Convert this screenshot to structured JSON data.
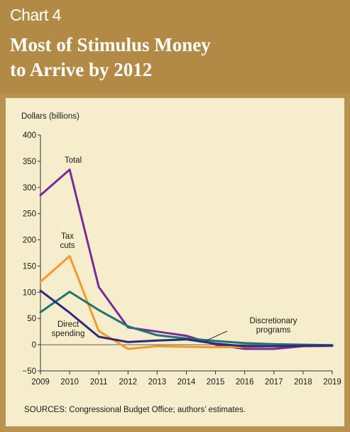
{
  "header": {
    "chart_label": "Chart 4",
    "title_line1": "Most of Stimulus Money",
    "title_line2": "to Arrive by 2012"
  },
  "source": "SOURCES: Congressional Budget Office; authors’ estimates.",
  "colors": {
    "header_bg": "#b38a45",
    "panel_bg": "#f6edcc",
    "total": "#7b2a9a",
    "tax_cuts": "#f39a2a",
    "direct_spending": "#2e2a7a",
    "discretionary": "#1e7470"
  },
  "chart_data": {
    "type": "line",
    "ylabel": "Dollars (billions)",
    "xlabel": "",
    "x": [
      "2009",
      "2010",
      "2011",
      "2012",
      "2013",
      "2014",
      "2015",
      "2016",
      "2017",
      "2018",
      "2019"
    ],
    "ylim": [
      -50,
      400
    ],
    "yticks": [
      -50,
      0,
      50,
      100,
      150,
      200,
      250,
      300,
      350,
      400
    ],
    "ytick_labels": [
      "−50",
      "0",
      "50",
      "100",
      "150",
      "200",
      "250",
      "300",
      "350",
      "400"
    ],
    "grid": false,
    "series": [
      {
        "name": "Total",
        "color": "#7b2a9a",
        "values": [
          285,
          334,
          110,
          33,
          25,
          17,
          0,
          -8,
          -8,
          -3,
          -2
        ]
      },
      {
        "name": "Tax cuts",
        "color": "#f39a2a",
        "values": [
          120,
          169,
          26,
          -8,
          -3,
          -4,
          -5,
          -4,
          -2,
          -2,
          -1
        ]
      },
      {
        "name": "Discretionary programs",
        "color": "#1e7470",
        "values": [
          62,
          101,
          66,
          35,
          18,
          12,
          7,
          3,
          1,
          0,
          -1
        ]
      },
      {
        "name": "Direct spending",
        "color": "#2e2a7a",
        "values": [
          103,
          61,
          15,
          5,
          8,
          10,
          2,
          -3,
          -3,
          -2,
          -2
        ]
      }
    ],
    "annotations": [
      {
        "lines": [
          "Total"
        ],
        "series": "Total"
      },
      {
        "lines": [
          "Tax",
          "cuts"
        ],
        "series": "Tax cuts"
      },
      {
        "lines": [
          "Direct",
          "spending"
        ],
        "series": "Direct spending"
      },
      {
        "lines": [
          "Discretionary",
          "programs"
        ],
        "series": "Discretionary programs"
      }
    ]
  }
}
